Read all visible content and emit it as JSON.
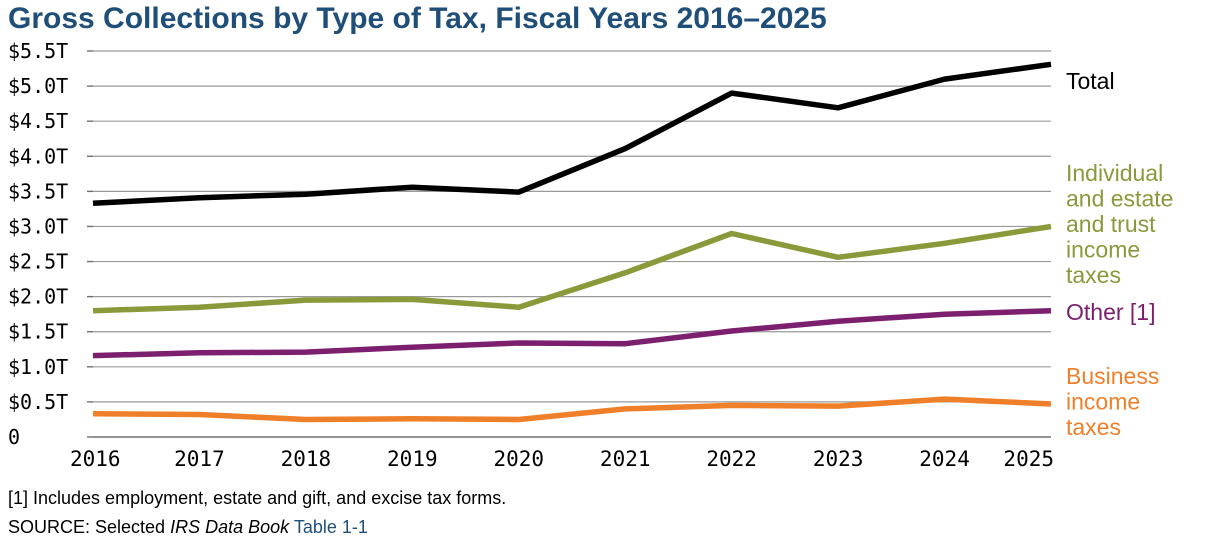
{
  "title": "Gross Collections by Type of Tax, Fiscal Years 2016–2025",
  "footnote": "[1] Includes employment, estate and gift, and excise tax forms.",
  "source": {
    "prefix": "SOURCE: Selected ",
    "publication": "IRS Data Book",
    "link_text": "Table 1-1"
  },
  "chart_data": {
    "type": "line",
    "x": [
      2016,
      2017,
      2018,
      2019,
      2020,
      2021,
      2022,
      2023,
      2024,
      2025
    ],
    "ylim": [
      0,
      5.5
    ],
    "ytick_values": [
      0,
      0.5,
      1.0,
      1.5,
      2.0,
      2.5,
      3.0,
      3.5,
      4.0,
      4.5,
      5.0,
      5.5
    ],
    "ytick_labels": [
      "0",
      "$0.5T",
      "$1.0T",
      "$1.5T",
      "$2.0T",
      "$2.5T",
      "$3.0T",
      "$3.5T",
      "$4.0T",
      "$4.5T",
      "$5.0T",
      "$5.5T"
    ],
    "grid": true,
    "legend": "direct labels at right",
    "series": [
      {
        "name": "Total",
        "color": "#000000",
        "values": [
          3.33,
          3.41,
          3.46,
          3.56,
          3.49,
          4.11,
          4.9,
          4.69,
          5.1,
          5.31
        ]
      },
      {
        "name": "Individual and estate and trust income taxes",
        "color": "#8a9a3b",
        "label_lines": [
          "Individual",
          "and estate",
          "and trust",
          "income",
          "taxes"
        ],
        "values": [
          1.8,
          1.85,
          1.95,
          1.96,
          1.85,
          2.34,
          2.9,
          2.56,
          2.76,
          3.0
        ]
      },
      {
        "name": "Other [1]",
        "color": "#7b1f6e",
        "label_lines": [
          "Other [1]"
        ],
        "values": [
          1.16,
          1.2,
          1.21,
          1.28,
          1.34,
          1.33,
          1.51,
          1.65,
          1.75,
          1.8
        ]
      },
      {
        "name": "Business income taxes",
        "color": "#f07f2a",
        "label_lines": [
          "Business",
          "income",
          "taxes"
        ],
        "values": [
          0.33,
          0.32,
          0.25,
          0.26,
          0.25,
          0.4,
          0.45,
          0.44,
          0.54,
          0.47
        ]
      }
    ]
  }
}
